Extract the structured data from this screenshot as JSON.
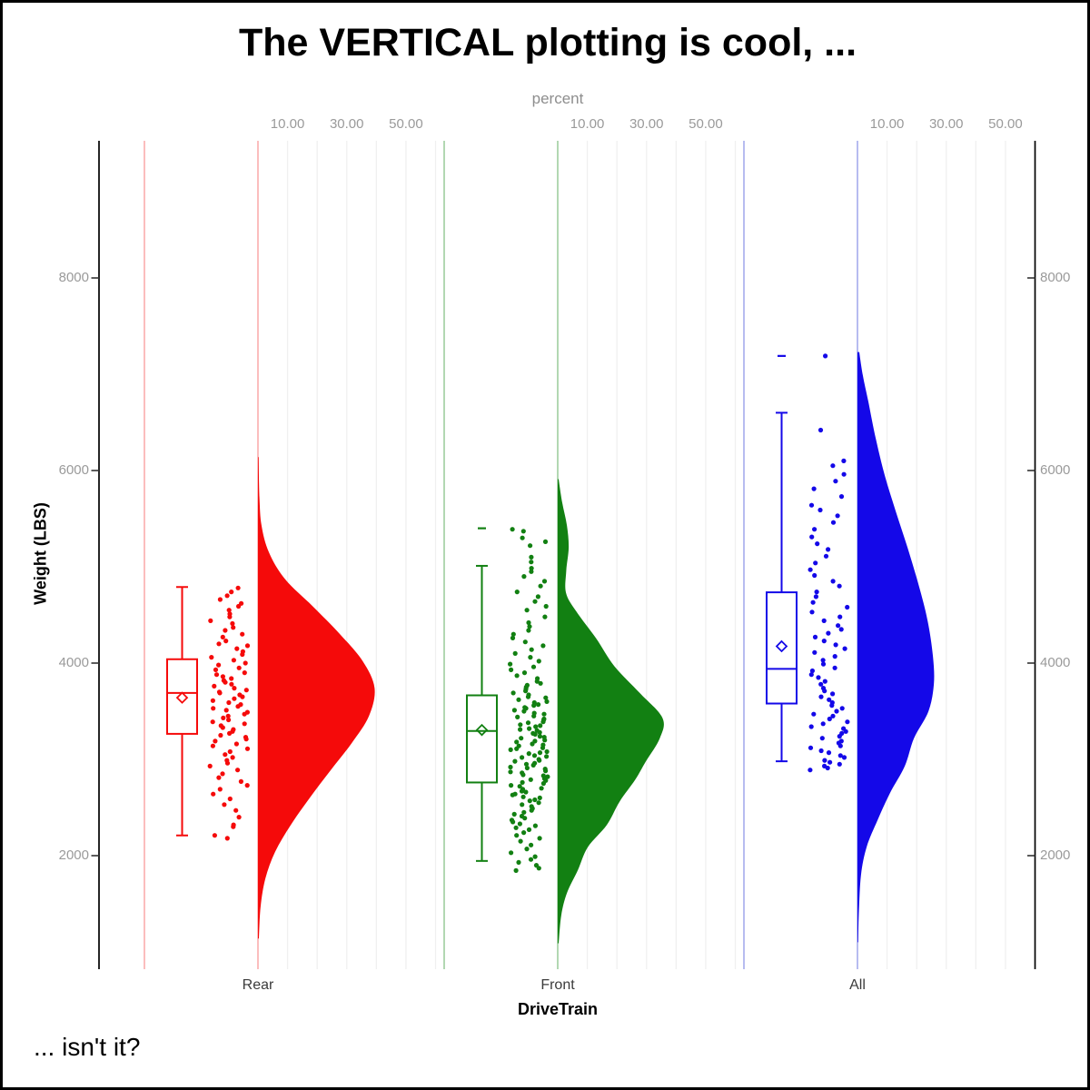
{
  "figure": {
    "title": "The VERTICAL plotting is cool, ...",
    "caption": "... isn't it?"
  },
  "chart_data": {
    "type": "raincloud (half-violin + box + jitter strip), vertical",
    "top_axis": {
      "label": "percent",
      "tick_labels": [
        "10.00",
        "30.00",
        "50.00"
      ],
      "tick_values": [
        10,
        30,
        50
      ],
      "gridline_percents": [
        10,
        20,
        30,
        40,
        50,
        60
      ]
    },
    "left_axis": {
      "label": "Weight (LBS)",
      "tick_values": [
        2000,
        4000,
        6000,
        8000
      ]
    },
    "right_axis": {
      "tick_values": [
        2000,
        4000,
        6000,
        8000
      ]
    },
    "bottom_axis": {
      "label": "DriveTrain",
      "categories": [
        "Rear",
        "Front",
        "All"
      ]
    },
    "value_range_shown": [
      820,
      9420
    ],
    "grid_color": "#F0F0F0",
    "groups": [
      {
        "name": "Rear",
        "color": "#F50A0A",
        "band_line_color": "#FBB6B6",
        "box": {
          "whisker_low": 2210,
          "q1": 3265,
          "median": 3690,
          "mean": 3640,
          "q3": 4040,
          "whisker_high": 4790,
          "far_outliers": []
        },
        "density_weight_percent": [
          [
            6140,
            0.2
          ],
          [
            5720,
            0.5
          ],
          [
            5430,
            1.2
          ],
          [
            5150,
            3.7
          ],
          [
            4870,
            9.2
          ],
          [
            4590,
            18.5
          ],
          [
            4300,
            27.7
          ],
          [
            4020,
            35.4
          ],
          [
            3740,
            39.4
          ],
          [
            3450,
            37.5
          ],
          [
            3170,
            31.7
          ],
          [
            2890,
            24.6
          ],
          [
            2600,
            17.5
          ],
          [
            2320,
            11.1
          ],
          [
            2040,
            5.8
          ],
          [
            1760,
            2.5
          ],
          [
            1470,
            0.9
          ],
          [
            1140,
            0.3
          ]
        ],
        "jitter_weights": [
          4780,
          4740,
          4700,
          4660,
          4620,
          4590,
          4550,
          4510,
          4480,
          4440,
          4410,
          4370,
          4340,
          4300,
          4270,
          4230,
          4200,
          4180,
          4150,
          4120,
          4090,
          4060,
          4030,
          4000,
          3980,
          3950,
          3930,
          3900,
          3880,
          3860,
          3840,
          3820,
          3800,
          3780,
          3760,
          3740,
          3720,
          3700,
          3690,
          3670,
          3650,
          3630,
          3610,
          3590,
          3570,
          3550,
          3530,
          3510,
          3490,
          3470,
          3450,
          3430,
          3410,
          3390,
          3370,
          3350,
          3330,
          3310,
          3290,
          3270,
          3250,
          3230,
          3210,
          3190,
          3160,
          3140,
          3110,
          3080,
          3050,
          3020,
          2990,
          2960,
          2930,
          2890,
          2850,
          2810,
          2770,
          2730,
          2690,
          2640,
          2590,
          2530,
          2470,
          2400,
          2320,
          2300,
          2210,
          2180
        ]
      },
      {
        "name": "Front",
        "color": "#128012",
        "band_line_color": "#A9D3A9",
        "box": {
          "whisker_low": 1945,
          "q1": 2760,
          "median": 3295,
          "mean": 3305,
          "q3": 3665,
          "whisker_high": 5010,
          "far_outliers": [
            5400
          ]
        },
        "density_weight_percent": [
          [
            5910,
            0.3
          ],
          [
            5670,
            1.5
          ],
          [
            5430,
            3.1
          ],
          [
            5200,
            3.7
          ],
          [
            4960,
            2.9
          ],
          [
            4730,
            2.8
          ],
          [
            4540,
            6.2
          ],
          [
            4260,
            12.9
          ],
          [
            3970,
            19.1
          ],
          [
            3690,
            27.7
          ],
          [
            3430,
            35.4
          ],
          [
            3220,
            34.5
          ],
          [
            2980,
            29.8
          ],
          [
            2790,
            26.2
          ],
          [
            2560,
            20.9
          ],
          [
            2320,
            16.6
          ],
          [
            2090,
            10.2
          ],
          [
            1850,
            6.8
          ],
          [
            1610,
            3.1
          ],
          [
            1380,
            1.2
          ],
          [
            1090,
            0.3
          ]
        ],
        "jitter_weights": [
          5390,
          5370,
          5300,
          5260,
          5220,
          5100,
          5050,
          4985,
          4950,
          4900,
          4850,
          4800,
          4740,
          4690,
          4640,
          4590,
          4550,
          4480,
          4420,
          4380,
          4340,
          4300,
          4260,
          4220,
          4180,
          4140,
          4100,
          4060,
          4020,
          3990,
          3960,
          3930,
          3900,
          3870,
          3840,
          3810,
          3790,
          3770,
          3750,
          3730,
          3710,
          3690,
          3670,
          3650,
          3640,
          3620,
          3600,
          3590,
          3570,
          3560,
          3540,
          3530,
          3510,
          3500,
          3480,
          3470,
          3450,
          3440,
          3420,
          3410,
          3390,
          3380,
          3360,
          3350,
          3340,
          3320,
          3310,
          3300,
          3280,
          3270,
          3260,
          3240,
          3230,
          3220,
          3200,
          3190,
          3180,
          3160,
          3150,
          3140,
          3120,
          3110,
          3100,
          3080,
          3070,
          3060,
          3040,
          3030,
          3020,
          3000,
          2990,
          2980,
          2960,
          2950,
          2940,
          2920,
          2910,
          2900,
          2880,
          2870,
          2860,
          2840,
          2830,
          2820,
          2800,
          2790,
          2780,
          2760,
          2750,
          2730,
          2720,
          2700,
          2690,
          2670,
          2660,
          2640,
          2630,
          2610,
          2600,
          2580,
          2570,
          2550,
          2530,
          2510,
          2490,
          2470,
          2450,
          2430,
          2410,
          2390,
          2370,
          2350,
          2330,
          2310,
          2290,
          2270,
          2240,
          2210,
          2180,
          2150,
          2110,
          2070,
          2030,
          1990,
          1960,
          1930,
          1900,
          1870,
          1845
        ]
      },
      {
        "name": "All",
        "color": "#1408E8",
        "band_line_color": "#AFB4EF",
        "box": {
          "whisker_low": 2980,
          "q1": 3580,
          "median": 3940,
          "mean": 4175,
          "q3": 4735,
          "whisker_high": 6600,
          "far_outliers": [
            7190
          ]
        },
        "density_weight_percent": [
          [
            7230,
            0.6
          ],
          [
            6990,
            1.8
          ],
          [
            6710,
            3.7
          ],
          [
            6330,
            6.2
          ],
          [
            5950,
            9.2
          ],
          [
            5580,
            12.9
          ],
          [
            5200,
            16.9
          ],
          [
            4820,
            20.6
          ],
          [
            4440,
            23.7
          ],
          [
            4070,
            25.5
          ],
          [
            3780,
            25.8
          ],
          [
            3500,
            24.0
          ],
          [
            3220,
            19.1
          ],
          [
            2930,
            16.0
          ],
          [
            2650,
            11.0
          ],
          [
            2370,
            6.8
          ],
          [
            2090,
            3.1
          ],
          [
            1800,
            1.2
          ],
          [
            1430,
            0.5
          ],
          [
            1100,
            0.2
          ]
        ],
        "jitter_weights": [
          7190,
          6420,
          6100,
          6050,
          5960,
          5890,
          5810,
          5730,
          5640,
          5590,
          5530,
          5460,
          5390,
          5310,
          5240,
          5180,
          5110,
          5040,
          4970,
          4910,
          4850,
          4800,
          4740,
          4690,
          4630,
          4580,
          4530,
          4480,
          4440,
          4390,
          4350,
          4310,
          4270,
          4230,
          4190,
          4150,
          4110,
          4070,
          4030,
          3990,
          3950,
          3920,
          3880,
          3850,
          3810,
          3780,
          3740,
          3710,
          3680,
          3650,
          3620,
          3590,
          3560,
          3530,
          3500,
          3470,
          3450,
          3420,
          3390,
          3370,
          3340,
          3320,
          3290,
          3270,
          3240,
          3220,
          3190,
          3170,
          3140,
          3120,
          3090,
          3070,
          3040,
          3020,
          2990,
          2970,
          2950,
          2930,
          2910,
          2890
        ]
      }
    ]
  }
}
